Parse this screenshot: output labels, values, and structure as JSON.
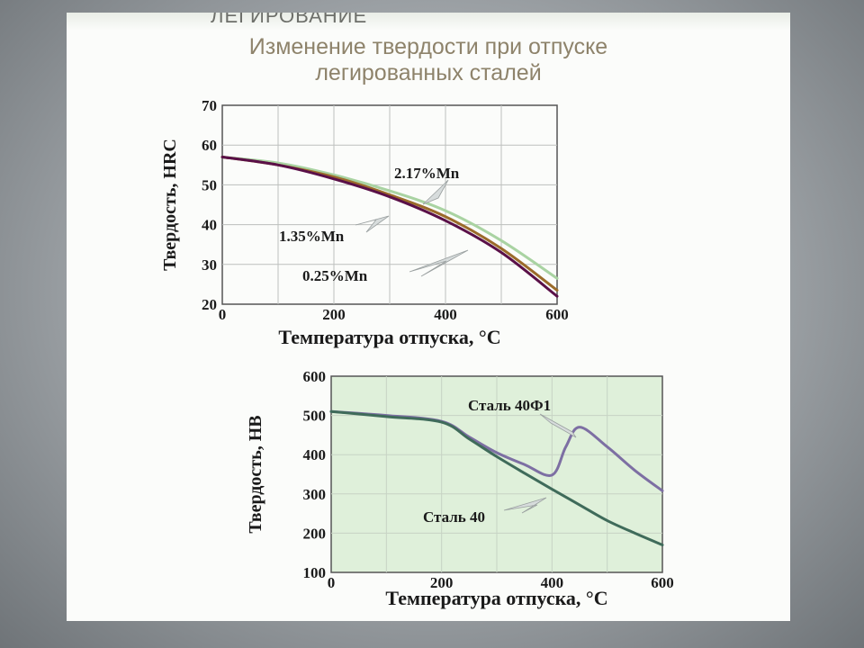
{
  "slide": {
    "header_strip": "ЛЕГИРОВАНИЕ",
    "title_line1": "Изменение твердости при отпуске",
    "title_line2": "легированных сталей"
  },
  "chart_data": [
    {
      "type": "line",
      "xlabel": "Температура отпуска, °C",
      "ylabel": "Твердость, HRC",
      "xlim": [
        0,
        600
      ],
      "ylim": [
        20,
        70
      ],
      "xticks": [
        0,
        200,
        400,
        600
      ],
      "yticks": [
        20,
        30,
        40,
        50,
        60,
        70
      ],
      "grid": true,
      "series": [
        {
          "name": "2.17%Mn",
          "color": "#a9d3a2",
          "x": [
            0,
            100,
            200,
            300,
            400,
            500,
            600
          ],
          "y": [
            57,
            55.5,
            52.5,
            48.5,
            43.5,
            36,
            26.5
          ]
        },
        {
          "name": "1.35%Mn",
          "color": "#9b6b2a",
          "x": [
            0,
            100,
            200,
            300,
            400,
            500,
            600
          ],
          "y": [
            57,
            55,
            52,
            47.5,
            42,
            34,
            23.5
          ]
        },
        {
          "name": "0.25%Mn",
          "color": "#5a1048",
          "x": [
            0,
            100,
            200,
            300,
            400,
            500,
            600
          ],
          "y": [
            57,
            55,
            51.5,
            47,
            41,
            33,
            22
          ]
        }
      ]
    },
    {
      "type": "line",
      "xlabel": "Температура отпуска, °C",
      "ylabel": "Твердость, HB",
      "xlim": [
        0,
        600
      ],
      "ylim": [
        100,
        600
      ],
      "xticks": [
        0,
        200,
        400,
        600
      ],
      "yticks": [
        100,
        200,
        300,
        400,
        500,
        600
      ],
      "grid": true,
      "series": [
        {
          "name": "Сталь 40Ф1",
          "color": "#7d6fa3",
          "x": [
            0,
            100,
            200,
            250,
            300,
            350,
            400,
            425,
            450,
            500,
            550,
            600
          ],
          "y": [
            510,
            500,
            485,
            445,
            405,
            375,
            348,
            420,
            470,
            420,
            360,
            308
          ]
        },
        {
          "name": "Сталь 40",
          "color": "#3f6b5a",
          "x": [
            0,
            100,
            200,
            250,
            300,
            350,
            400,
            450,
            500,
            550,
            600
          ],
          "y": [
            510,
            497,
            483,
            440,
            395,
            353,
            312,
            272,
            232,
            200,
            170
          ]
        }
      ]
    }
  ]
}
